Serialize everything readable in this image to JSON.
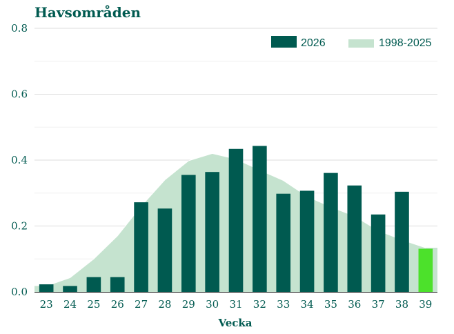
{
  "chart_data": {
    "type": "bar",
    "title": "Havsområden",
    "xlabel": "Vecka",
    "ylabel": "",
    "ylim": [
      0,
      0.8
    ],
    "yticks": [
      "0.0",
      "0.2",
      "0.4",
      "0.6",
      "0.8"
    ],
    "categories": [
      "23",
      "24",
      "25",
      "26",
      "27",
      "28",
      "29",
      "30",
      "31",
      "32",
      "33",
      "34",
      "35",
      "36",
      "37",
      "38",
      "39"
    ],
    "series": [
      {
        "name": "2026",
        "kind": "bar",
        "values": [
          0.023,
          0.018,
          0.045,
          0.045,
          0.272,
          0.253,
          0.355,
          0.364,
          0.434,
          0.443,
          0.298,
          0.307,
          0.361,
          0.323,
          0.235,
          0.304,
          0.131
        ],
        "color": "#005a50",
        "highlight_last_color": "#4ce12b"
      },
      {
        "name": "1998-2025",
        "kind": "area",
        "values": [
          0.018,
          0.043,
          0.1,
          0.17,
          0.26,
          0.34,
          0.398,
          0.42,
          0.403,
          0.37,
          0.338,
          0.29,
          0.258,
          0.23,
          0.186,
          0.158,
          0.134
        ],
        "color": "#c5e3cf",
        "line_color": "#ffffff"
      }
    ],
    "legend_position": "top-right",
    "grid": true
  }
}
